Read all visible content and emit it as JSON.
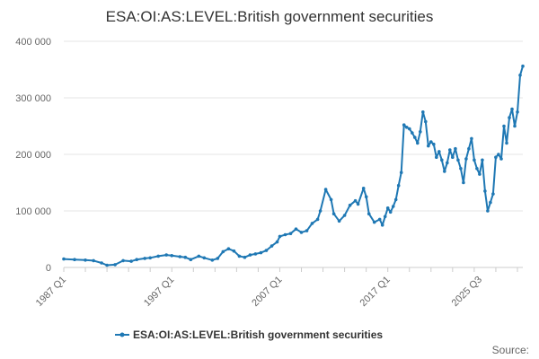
{
  "chart_data": {
    "type": "line",
    "title": "ESA:OI:AS:LEVEL:British government securities",
    "xlabel": "",
    "ylabel": "",
    "ylim": [
      0,
      400000
    ],
    "y_ticks": [
      0,
      100000,
      200000,
      300000,
      400000
    ],
    "y_tick_labels": [
      "0",
      "100 000",
      "200 000",
      "300 000",
      "400 000"
    ],
    "x_tick_labels": [
      "1987 Q1",
      "1997 Q1",
      "2007 Q1",
      "2017 Q1",
      "2025 Q3"
    ],
    "x_tick_years": [
      1987,
      1997,
      2007,
      2017,
      2025.5
    ],
    "grid": "horizontal",
    "legend": "bottom",
    "series": [
      {
        "name": "ESA:OI:AS:LEVEL:British government securities",
        "color": "#1f78b4",
        "points": [
          [
            1987.0,
            15000
          ],
          [
            1988.0,
            14000
          ],
          [
            1989.0,
            13000
          ],
          [
            1989.75,
            12000
          ],
          [
            1990.5,
            8000
          ],
          [
            1991.0,
            4000
          ],
          [
            1991.75,
            5000
          ],
          [
            1992.5,
            12000
          ],
          [
            1993.25,
            11000
          ],
          [
            1993.75,
            14000
          ],
          [
            1994.5,
            16000
          ],
          [
            1995.0,
            17000
          ],
          [
            1995.75,
            20000
          ],
          [
            1996.5,
            22000
          ],
          [
            1997.0,
            21000
          ],
          [
            1997.75,
            19000
          ],
          [
            1998.25,
            18000
          ],
          [
            1998.75,
            14000
          ],
          [
            1999.5,
            20000
          ],
          [
            2000.0,
            17000
          ],
          [
            2000.75,
            13000
          ],
          [
            2001.25,
            16000
          ],
          [
            2001.75,
            28000
          ],
          [
            2002.25,
            33000
          ],
          [
            2002.75,
            29000
          ],
          [
            2003.25,
            20000
          ],
          [
            2003.75,
            18000
          ],
          [
            2004.25,
            22000
          ],
          [
            2004.75,
            24000
          ],
          [
            2005.25,
            26000
          ],
          [
            2005.75,
            30000
          ],
          [
            2006.25,
            38000
          ],
          [
            2006.75,
            45000
          ],
          [
            2007.0,
            55000
          ],
          [
            2007.5,
            58000
          ],
          [
            2008.0,
            60000
          ],
          [
            2008.5,
            68000
          ],
          [
            2009.0,
            62000
          ],
          [
            2009.5,
            65000
          ],
          [
            2010.0,
            78000
          ],
          [
            2010.5,
            85000
          ],
          [
            2010.75,
            100000
          ],
          [
            2011.25,
            138000
          ],
          [
            2011.75,
            120000
          ],
          [
            2012.0,
            95000
          ],
          [
            2012.5,
            82000
          ],
          [
            2013.0,
            92000
          ],
          [
            2013.5,
            110000
          ],
          [
            2014.0,
            118000
          ],
          [
            2014.25,
            112000
          ],
          [
            2014.75,
            140000
          ],
          [
            2015.0,
            125000
          ],
          [
            2015.25,
            95000
          ],
          [
            2015.75,
            80000
          ],
          [
            2016.25,
            85000
          ],
          [
            2016.5,
            75000
          ],
          [
            2016.75,
            90000
          ],
          [
            2017.0,
            105000
          ],
          [
            2017.25,
            98000
          ],
          [
            2017.5,
            108000
          ],
          [
            2017.75,
            120000
          ],
          [
            2018.0,
            145000
          ],
          [
            2018.25,
            168000
          ],
          [
            2018.5,
            252000
          ],
          [
            2018.75,
            248000
          ],
          [
            2019.0,
            245000
          ],
          [
            2019.25,
            238000
          ],
          [
            2019.5,
            230000
          ],
          [
            2019.75,
            220000
          ],
          [
            2020.0,
            240000
          ],
          [
            2020.25,
            275000
          ],
          [
            2020.5,
            258000
          ],
          [
            2020.75,
            215000
          ],
          [
            2021.0,
            222000
          ],
          [
            2021.25,
            218000
          ],
          [
            2021.5,
            195000
          ],
          [
            2021.75,
            205000
          ],
          [
            2022.0,
            190000
          ],
          [
            2022.25,
            170000
          ],
          [
            2022.5,
            185000
          ],
          [
            2022.75,
            208000
          ],
          [
            2023.0,
            195000
          ],
          [
            2023.25,
            210000
          ],
          [
            2023.5,
            190000
          ],
          [
            2023.75,
            175000
          ],
          [
            2024.0,
            150000
          ],
          [
            2024.25,
            192000
          ],
          [
            2024.5,
            210000
          ],
          [
            2024.75,
            228000
          ],
          [
            2025.0,
            190000
          ],
          [
            2025.25,
            175000
          ],
          [
            2025.5,
            165000
          ],
          [
            2025.75,
            190000
          ],
          [
            2026.0,
            135000
          ],
          [
            2026.25,
            100000
          ],
          [
            2026.5,
            115000
          ],
          [
            2026.75,
            130000
          ],
          [
            2027.0,
            195000
          ],
          [
            2027.25,
            200000
          ],
          [
            2027.5,
            192000
          ],
          [
            2027.75,
            250000
          ],
          [
            2028.0,
            220000
          ],
          [
            2028.25,
            265000
          ],
          [
            2028.5,
            280000
          ],
          [
            2028.75,
            250000
          ],
          [
            2029.0,
            275000
          ],
          [
            2029.25,
            340000
          ],
          [
            2029.5,
            356000
          ]
        ]
      }
    ]
  },
  "legend_label": "ESA:OI:AS:LEVEL:British government securities",
  "source_label": "Source:"
}
